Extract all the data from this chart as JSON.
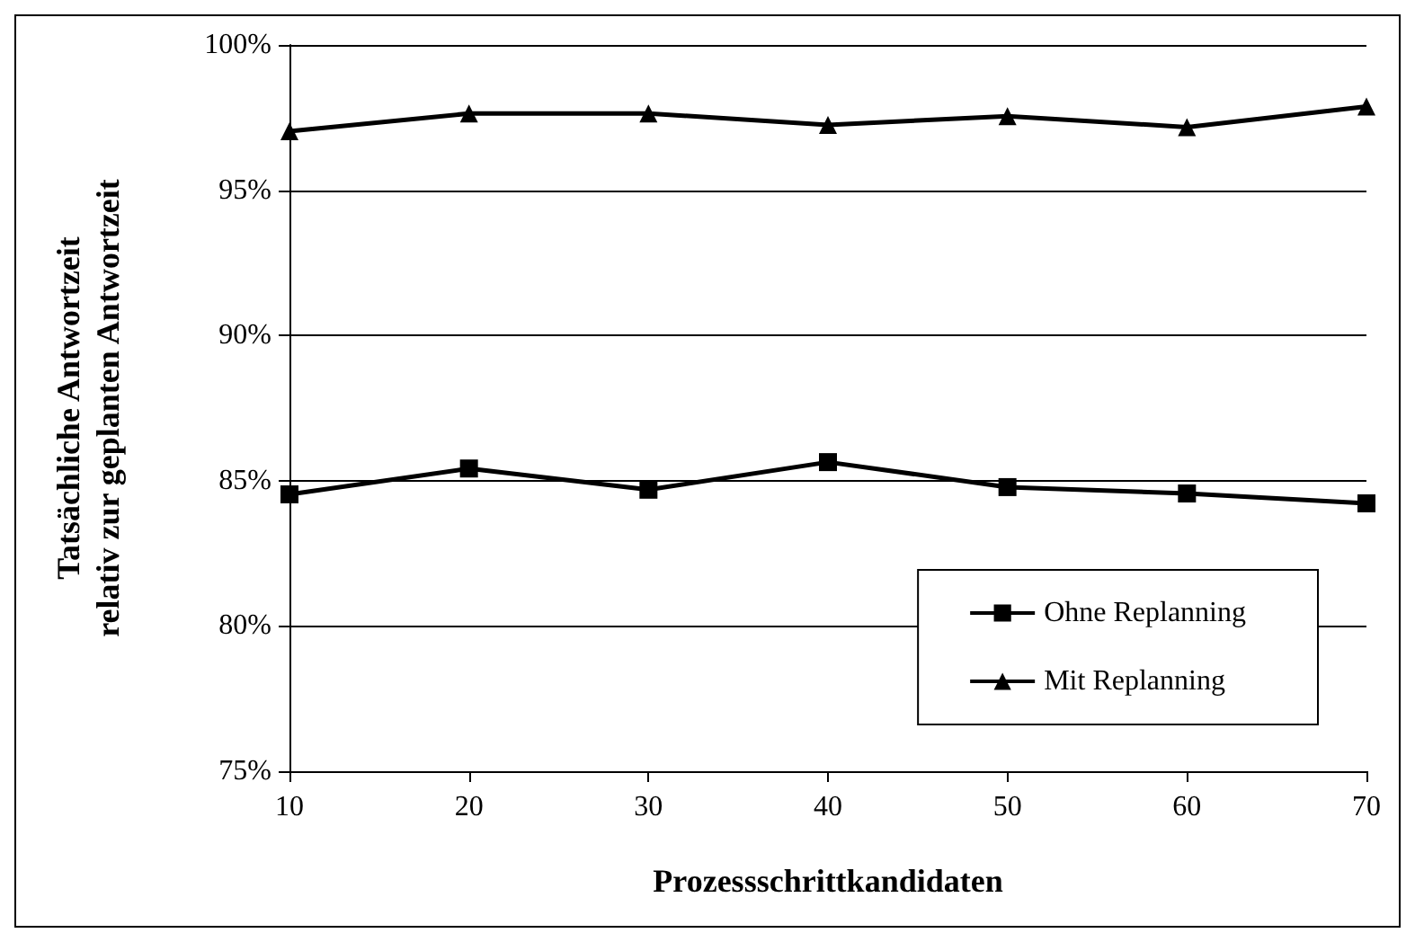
{
  "chart_data": {
    "type": "line",
    "xlabel": "Prozessschrittkandidaten",
    "ylabel": "Tatsächliche Antwortzeit relativ zur geplanten Antwortzeit",
    "x": [
      10,
      20,
      30,
      40,
      50,
      60,
      70
    ],
    "series": [
      {
        "name": "Ohne Replanning",
        "color": "#000000",
        "marker": "square",
        "values": [
          84.53,
          85.42,
          84.69,
          85.64,
          84.78,
          84.56,
          84.22
        ]
      },
      {
        "name": "Mit Replanning",
        "color": "#000000",
        "marker": "triangle",
        "values": [
          97.03,
          97.64,
          97.64,
          97.25,
          97.55,
          97.17,
          97.88
        ]
      }
    ],
    "xlim": [
      10,
      70
    ],
    "xticks": [
      10,
      20,
      30,
      40,
      50,
      60,
      70
    ],
    "ylim": [
      75,
      100
    ],
    "yticks": [
      {
        "value": 75,
        "label": "75%"
      },
      {
        "value": 80,
        "label": "80%"
      },
      {
        "value": 85,
        "label": "85%"
      },
      {
        "value": 90,
        "label": "90%"
      },
      {
        "value": 95,
        "label": "95%"
      },
      {
        "value": 100,
        "label": "100%"
      }
    ],
    "grid": "y",
    "legend": "bottom right",
    "line_style": "solid"
  }
}
